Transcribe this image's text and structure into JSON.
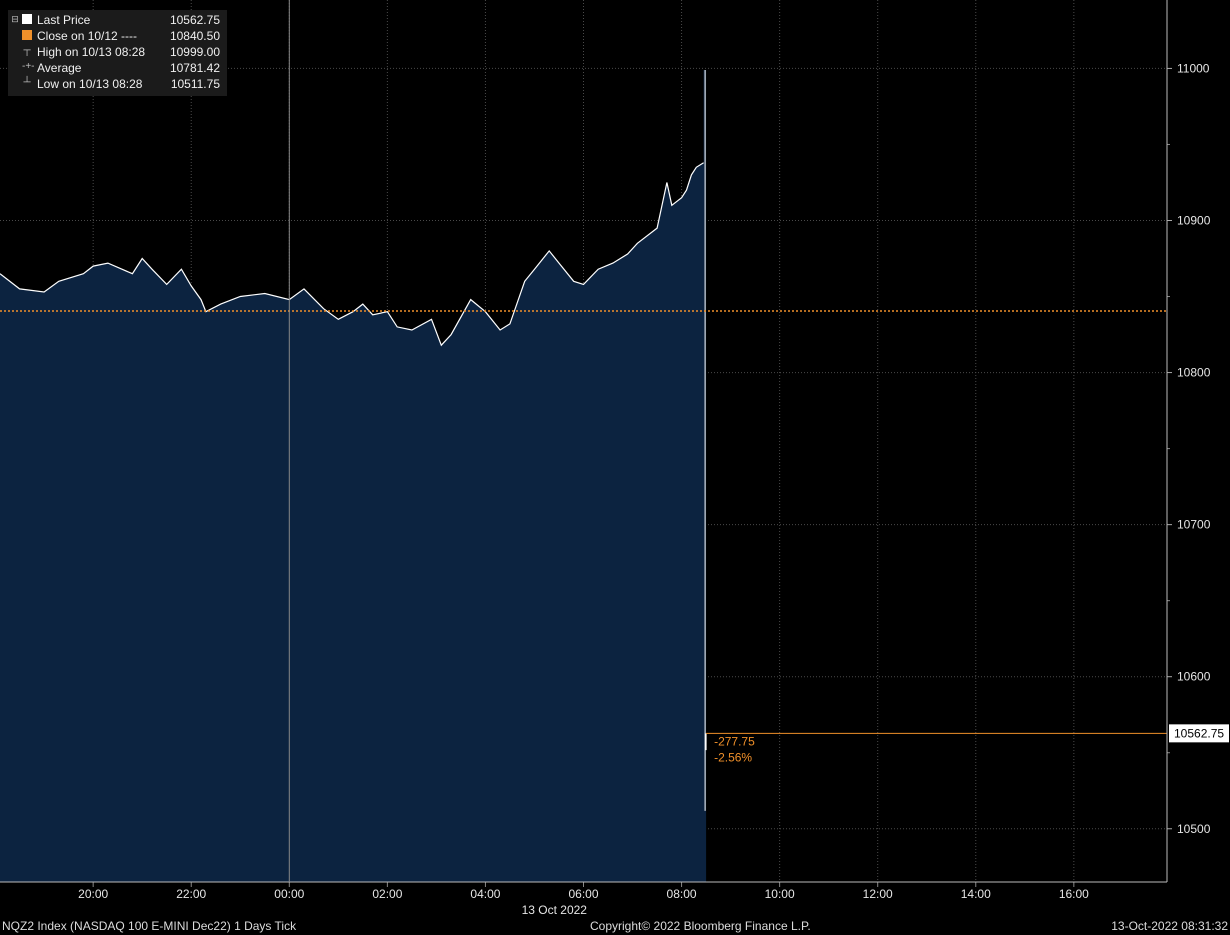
{
  "legend": {
    "rows": [
      {
        "label": "Last Price",
        "value": "10562.75",
        "marker": "last-price-marker-icon"
      },
      {
        "label": "Close on 10/12 ----",
        "value": "10840.50",
        "marker": "close-marker-icon"
      },
      {
        "label": "High on 10/13 08:28",
        "value": "10999.00",
        "marker": "high-marker-icon"
      },
      {
        "label": "Average",
        "value": "10781.42",
        "marker": "average-marker-icon"
      },
      {
        "label": "Low on 10/13 08:28",
        "value": "10511.75",
        "marker": "low-marker-icon"
      }
    ]
  },
  "change": {
    "points": "-277.75",
    "percent": "-2.56%"
  },
  "last_price_tag": "10562.75",
  "date_label": "13 Oct 2022",
  "footer": {
    "left": "NQZ2 Index (NASDAQ 100 E-MINI Dec22) 1 Days  Tick",
    "center": "Copyright© 2022 Bloomberg Finance L.P.",
    "right": "13-Oct-2022 08:31:32"
  },
  "colors": {
    "background": "#000000",
    "area_fill": "#0c2340",
    "price_line": "#ffffff",
    "close_line": "#f0902a",
    "grid": "#4a4a4a"
  },
  "chart_data": {
    "type": "area",
    "x_unit": "hour",
    "y_axis_ticks": [
      10500,
      10600,
      10700,
      10800,
      10900,
      11000
    ],
    "y_axis_tick_labels": [
      "10500",
      "10600",
      "10700",
      "10800",
      "10900",
      "11000"
    ],
    "ylim": [
      10465,
      11045
    ],
    "x_axis_ticks": [
      20,
      22,
      24,
      26,
      28,
      30,
      32,
      34,
      36,
      38,
      40
    ],
    "x_axis_tick_labels": [
      "20:00",
      "22:00",
      "00:00",
      "02:00",
      "04:00",
      "06:00",
      "08:00",
      "10:00",
      "12:00",
      "14:00",
      "16:00"
    ],
    "xlim": [
      18.1,
      41.9
    ],
    "close_value": 10840.5,
    "last_value": 10562.75,
    "high_value": 10999.0,
    "low_value": 10511.75,
    "series": [
      {
        "x": [
          18.1,
          18.5,
          19.0,
          19.3,
          19.8,
          20.0,
          20.3,
          20.8,
          21.0,
          21.2,
          21.5,
          21.8,
          22.0,
          22.2,
          22.3,
          22.6,
          23.0,
          23.5,
          24.0,
          24.3,
          24.7,
          25.0,
          25.3,
          25.5,
          25.7,
          26.0,
          26.2,
          26.5,
          26.9,
          27.1,
          27.3,
          27.7,
          28.0,
          28.3,
          28.5,
          28.8,
          29.0,
          29.3,
          29.5,
          29.8,
          30.0,
          30.3,
          30.6,
          30.9,
          31.1,
          31.5,
          31.7,
          31.8,
          32.0,
          32.1,
          32.2,
          32.3,
          32.45,
          32.48,
          32.5
        ],
        "y": [
          10865,
          10855,
          10853,
          10860,
          10865,
          10870,
          10872,
          10865,
          10875,
          10868,
          10858,
          10868,
          10857,
          10848,
          10840,
          10845,
          10850,
          10852,
          10848,
          10855,
          10842,
          10835,
          10840,
          10845,
          10838,
          10840,
          10830,
          10828,
          10835,
          10818,
          10825,
          10848,
          10840,
          10828,
          10832,
          10860,
          10868,
          10880,
          10872,
          10860,
          10858,
          10868,
          10872,
          10878,
          10885,
          10895,
          10925,
          10910,
          10915,
          10920,
          10930,
          10935,
          10938,
          10515,
          10562.75
        ]
      }
    ]
  }
}
